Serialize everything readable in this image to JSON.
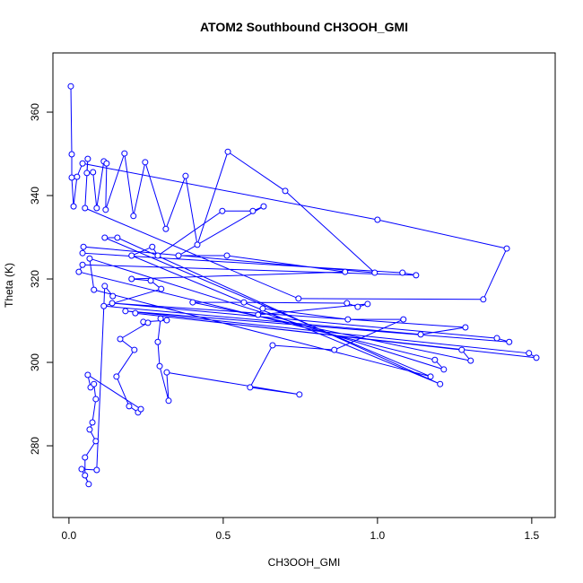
{
  "chart_data": {
    "type": "line",
    "title": "ATOM2 Southbound CH3OOH_GMI",
    "xlabel": "CH3OOH_GMI",
    "ylabel": "Theta (K)",
    "color": "#0000ff",
    "x": [
      0.006,
      0.009,
      0.009,
      0.015,
      0.026,
      0.044,
      1.0,
      1.419,
      1.343,
      0.744,
      0.052,
      0.061,
      0.058,
      0.078,
      0.09,
      0.113,
      0.122,
      0.119,
      0.18,
      0.209,
      0.247,
      0.314,
      0.378,
      0.416,
      0.515,
      0.701,
      0.991,
      0.047,
      0.044,
      1.081,
      1.125,
      0.044,
      0.032,
      1.186,
      1.215,
      0.067,
      0.081,
      1.172,
      0.116,
      0.157,
      1.203,
      0.203,
      0.27,
      0.288,
      0.497,
      0.596,
      0.631,
      0.355,
      0.512,
      0.895,
      0.203,
      0.265,
      0.299,
      0.113,
      1.14,
      1.285,
      0.14,
      1.387,
      1.427,
      0.183,
      1.491,
      1.515,
      0.215,
      1.273,
      1.302,
      0.401,
      0.567,
      0.901,
      0.936,
      0.968,
      0.613,
      0.628,
      0.904,
      1.084,
      0.86,
      0.66,
      0.587,
      0.747,
      0.317,
      0.323,
      0.294,
      0.288,
      0.297,
      0.317,
      0.241,
      0.256,
      0.166,
      0.212,
      0.154,
      0.195,
      0.224,
      0.233,
      0.061,
      0.07,
      0.081,
      0.087,
      0.076,
      0.067,
      0.087,
      0.052,
      0.052,
      0.064,
      0.041,
      0.09,
      0.116,
      0.142
    ],
    "values": [
      366.2,
      349.9,
      344.3,
      337.4,
      344.5,
      347.7,
      334.2,
      327.3,
      315.1,
      315.3,
      337.0,
      348.8,
      345.4,
      345.6,
      337.0,
      348.2,
      347.7,
      336.6,
      350.1,
      335.1,
      348.0,
      332.0,
      344.7,
      328.2,
      350.5,
      341.1,
      321.5,
      327.7,
      326.2,
      321.5,
      320.9,
      323.4,
      321.7,
      300.6,
      298.3,
      324.9,
      317.4,
      296.6,
      329.9,
      329.9,
      294.8,
      325.6,
      327.7,
      325.6,
      336.3,
      336.3,
      337.4,
      325.6,
      325.6,
      321.7,
      320.0,
      319.6,
      317.6,
      313.5,
      306.7,
      308.4,
      314.2,
      305.8,
      304.9,
      312.3,
      302.2,
      301.1,
      311.8,
      303.0,
      300.4,
      314.4,
      314.4,
      314.2,
      313.3,
      314.0,
      311.4,
      312.9,
      310.3,
      310.3,
      303.0,
      304.1,
      294.0,
      292.3,
      297.6,
      290.8,
      299.1,
      304.9,
      310.5,
      310.1,
      309.7,
      309.5,
      305.6,
      303.0,
      296.6,
      289.5,
      288.0,
      288.8,
      297.0,
      294.0,
      294.8,
      291.2,
      285.6,
      283.9,
      281.1,
      277.2,
      272.9,
      270.8,
      274.4,
      274.2,
      318.3,
      315.9
    ],
    "xlim": [
      -0.052,
      1.576
    ],
    "ylim": [
      262.8,
      374.2
    ],
    "xticks": [
      {
        "value": 0,
        "label": "0.0"
      },
      {
        "value": 0.5,
        "label": "0.5"
      },
      {
        "value": 1,
        "label": "1.0"
      },
      {
        "value": 1.5,
        "label": "1.5"
      }
    ],
    "yticks": [
      280,
      300,
      320,
      340,
      360
    ]
  }
}
